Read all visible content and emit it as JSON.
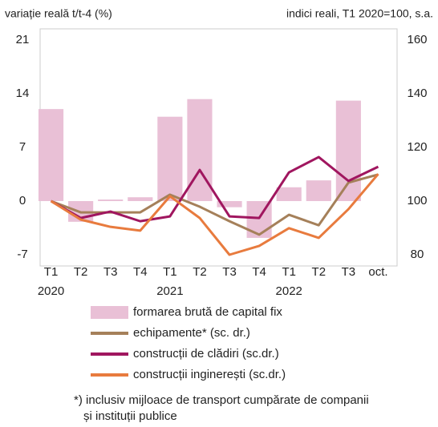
{
  "chart_data": {
    "type": "bar_line",
    "left_axis_label": "variație reală t/t-4 (%)",
    "right_axis_label": "indici reali, T1 2020=100, s.a.",
    "categories": [
      "T1",
      "T2",
      "T3",
      "T4",
      "T1",
      "T2",
      "T3",
      "T4",
      "T1",
      "T2",
      "T3",
      "oct."
    ],
    "year_labels": [
      "2020",
      null,
      null,
      null,
      "2021",
      null,
      null,
      null,
      "2022",
      null,
      null,
      null
    ],
    "ylim": [
      -7,
      21
    ],
    "yticks": [
      -7,
      0,
      7,
      14,
      21
    ],
    "y2lim": [
      80,
      160
    ],
    "y2ticks": [
      80,
      100,
      120,
      140,
      160
    ],
    "series": [
      {
        "name": "formarea brută de capital fix",
        "color": "#e9c0d6",
        "kind": "bar",
        "values": [
          12.0,
          -2.7,
          0.2,
          0.5,
          11.0,
          13.3,
          -0.8,
          -4.8,
          1.8,
          2.7,
          13.1,
          null
        ]
      },
      {
        "name": "echipamente* (sc. dr.)",
        "color": "#a5805a",
        "kind": "line",
        "axis": "y2",
        "values": [
          100,
          95.8,
          95.8,
          95.8,
          102.4,
          97.9,
          92.5,
          87.5,
          94.9,
          91,
          106.9,
          109.9
        ]
      },
      {
        "name": "construcții de clădiri (sc.dr.)",
        "color": "#a0165f",
        "kind": "line",
        "axis": "y2",
        "values": [
          100,
          93.7,
          96.1,
          92.5,
          94.3,
          111.6,
          94.3,
          93.7,
          110.7,
          116.4,
          107.5,
          112.8
        ]
      },
      {
        "name": "construcții inginerești (sc.dr.)",
        "color": "#e87b3e",
        "kind": "line",
        "axis": "y2",
        "values": [
          100,
          93.1,
          90.4,
          89,
          101.8,
          93.7,
          80,
          83.3,
          89.9,
          86.3,
          97,
          110.1
        ]
      }
    ],
    "notes": [
      "*) inclusiv mijloace de transport cumpărate de companii",
      "și instituții publice"
    ]
  }
}
